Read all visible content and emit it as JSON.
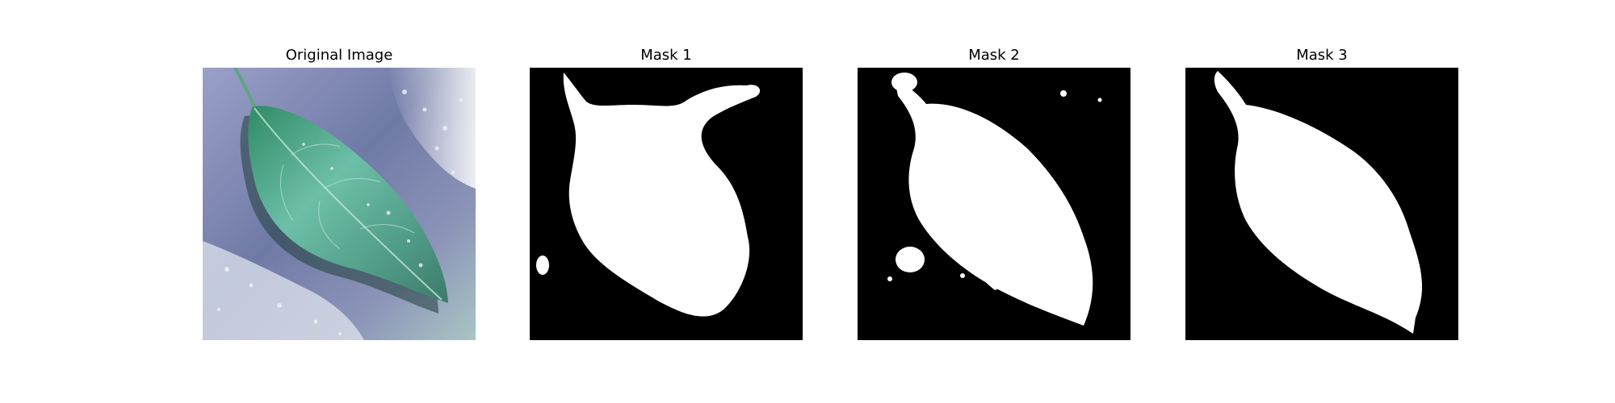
{
  "figure": {
    "panels": [
      {
        "title": "Original Image",
        "kind": "photo",
        "subject": "leaf"
      },
      {
        "title": "Mask 1",
        "kind": "mask"
      },
      {
        "title": "Mask 2",
        "kind": "mask"
      },
      {
        "title": "Mask 3",
        "kind": "mask"
      }
    ]
  },
  "colors": {
    "background": "#ffffff",
    "mask_foreground": "#ffffff",
    "mask_background": "#000000",
    "leaf_green": "#5fae98",
    "leaf_dark": "#2c6b58",
    "surface_blue": "#6f7aa6"
  }
}
